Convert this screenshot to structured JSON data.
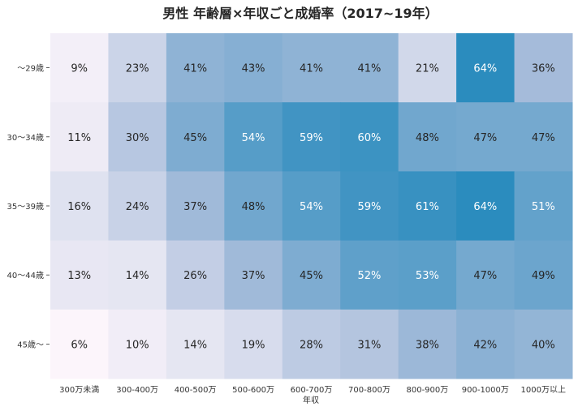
{
  "chart_data": {
    "type": "heatmap",
    "title": "男性 年齢層×年収ごと成婚率（2017~19年）",
    "xlabel": "年収",
    "ylabel": "",
    "x_categories": [
      "300万未満",
      "300-400万",
      "400-500万",
      "500-600万",
      "600-700万",
      "700-800万",
      "800-900万",
      "900-1000万",
      "1000万以上"
    ],
    "y_categories": [
      "～29歳",
      "30～34歳",
      "35～39歳",
      "40～44歳",
      "45歳～"
    ],
    "values": [
      [
        9,
        23,
        41,
        43,
        41,
        41,
        21,
        64,
        36
      ],
      [
        11,
        30,
        45,
        54,
        59,
        60,
        48,
        47,
        47
      ],
      [
        16,
        24,
        37,
        48,
        54,
        59,
        61,
        64,
        51
      ],
      [
        13,
        14,
        26,
        37,
        45,
        52,
        53,
        47,
        49
      ],
      [
        6,
        10,
        14,
        19,
        28,
        31,
        38,
        42,
        40
      ]
    ],
    "value_suffix": "%",
    "value_range": [
      6,
      64
    ],
    "colormap": {
      "low": "#fcf5fb",
      "mid": "#a9bddb",
      "high": "#2b8cbe"
    },
    "text_colors": {
      "dark": "#262626",
      "light": "#ffffff"
    }
  }
}
